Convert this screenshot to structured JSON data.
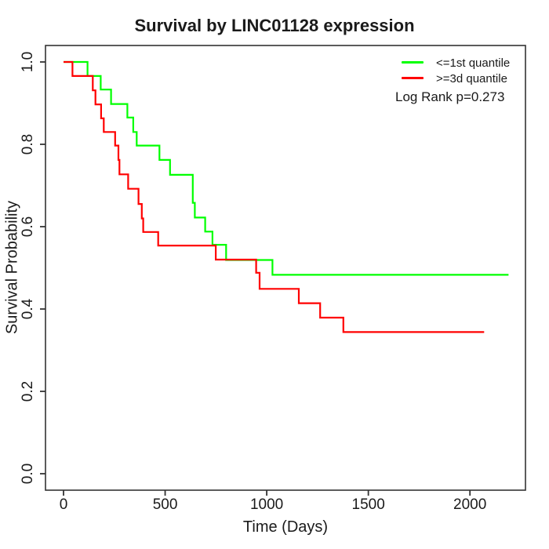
{
  "window": {
    "background": "#ffffff",
    "text_color": "#1a1a1a",
    "axis_color": "#333333"
  },
  "chart_data": {
    "type": "line",
    "subtype": "kaplan-meier-step",
    "title": "Survival by LINC01128 expression",
    "xlabel": "Time (Days)",
    "ylabel": "Survival Probability",
    "xlim": [
      0,
      2270
    ],
    "ylim": [
      0.0,
      1.0
    ],
    "x_ticks": [
      0,
      500,
      1000,
      1500,
      2000
    ],
    "x_tick_labels": [
      "0",
      "500",
      "1000",
      "1500",
      "2000"
    ],
    "y_ticks": [
      0.0,
      0.2,
      0.4,
      0.6,
      0.8,
      1.0
    ],
    "y_tick_labels": [
      "0.0",
      "0.2",
      "0.4",
      "0.6",
      "0.8",
      "1.0"
    ],
    "grid": false,
    "legend_position": "top-right",
    "annotation": "Log Rank p=0.273",
    "series": [
      {
        "name": "<=1st quantile",
        "color": "#00ff00",
        "start": [
          0,
          1.0
        ],
        "drops": [
          [
            118,
            0.966
          ],
          [
            183,
            0.933
          ],
          [
            234,
            0.898
          ],
          [
            314,
            0.865
          ],
          [
            343,
            0.83
          ],
          [
            360,
            0.797
          ],
          [
            472,
            0.762
          ],
          [
            524,
            0.726
          ],
          [
            636,
            0.658
          ],
          [
            646,
            0.622
          ],
          [
            697,
            0.588
          ],
          [
            733,
            0.556
          ],
          [
            800,
            0.519
          ],
          [
            1028,
            0.483
          ]
        ],
        "end_day": 2190,
        "final_survival": 0.483
      },
      {
        "name": ">=3d quantile",
        "color": "#ff0000",
        "start": [
          0,
          1.0
        ],
        "drops": [
          [
            44,
            0.966
          ],
          [
            144,
            0.931
          ],
          [
            157,
            0.897
          ],
          [
            185,
            0.863
          ],
          [
            198,
            0.83
          ],
          [
            254,
            0.797
          ],
          [
            270,
            0.762
          ],
          [
            275,
            0.727
          ],
          [
            318,
            0.692
          ],
          [
            369,
            0.655
          ],
          [
            385,
            0.62
          ],
          [
            392,
            0.587
          ],
          [
            466,
            0.554
          ],
          [
            749,
            0.52
          ],
          [
            948,
            0.488
          ],
          [
            965,
            0.449
          ],
          [
            1158,
            0.414
          ],
          [
            1263,
            0.379
          ],
          [
            1377,
            0.344
          ]
        ],
        "end_day": 2070,
        "final_survival": 0.344
      }
    ]
  }
}
